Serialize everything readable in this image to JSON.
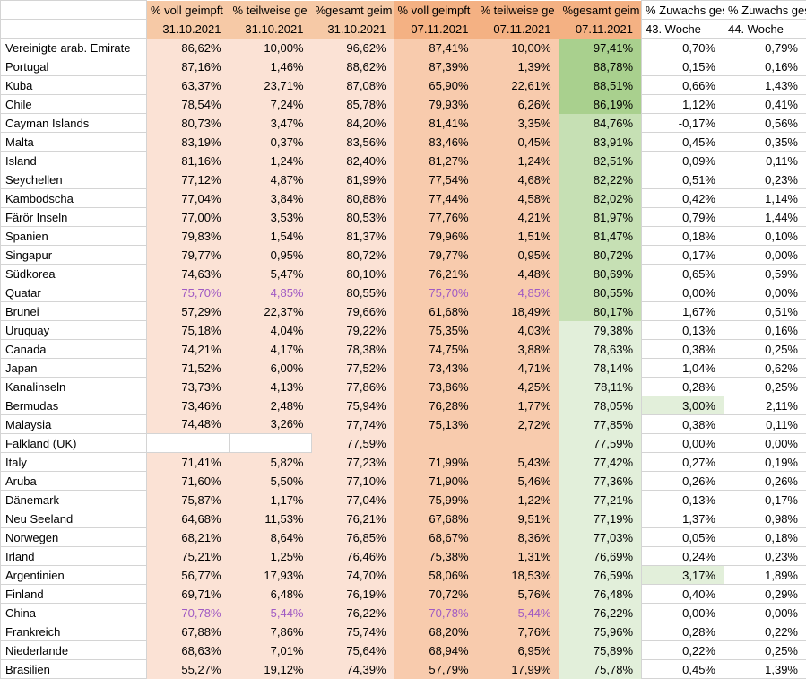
{
  "app": {
    "type": "spreadsheet-vaccination-table"
  },
  "colors": {
    "oct_header": "#f6c9a6",
    "oct_body": "#fbe2d5",
    "nov_header": "#f4b183",
    "nov_body": "#f8cbad",
    "gesamt_dark_green": "#a9d08e",
    "gesamt_mid_green": "#c6e0b4",
    "gesamt_light_green": "#e2efda",
    "highlight_green": "#e2efda",
    "purple_font": "#a05ac3",
    "gridline": "#d4d4d4"
  },
  "table": {
    "columns": [
      {
        "key": "voll-31",
        "label": "% voll geimpft",
        "sub": "31.10.2021",
        "group": "oct"
      },
      {
        "key": "teilweise-31",
        "label": "% teilweise ge",
        "sub": "31.10.2021",
        "group": "oct"
      },
      {
        "key": "gesamt-31",
        "label": "%gesamt geim",
        "sub": "31.10.2021",
        "group": "oct"
      },
      {
        "key": "voll-07",
        "label": "% voll geimpft",
        "sub": "07.11.2021",
        "group": "nov"
      },
      {
        "key": "teilweise-07",
        "label": "% teilweise ge",
        "sub": "07.11.2021",
        "group": "nov"
      },
      {
        "key": "gesamt-07",
        "label": "%gesamt geim",
        "sub": "07.11.2021",
        "group": "nov"
      },
      {
        "key": "zuwachs-43",
        "label": "% Zuwachs ges",
        "sub": "43. Woche",
        "group": "plain"
      },
      {
        "key": "zuwachs-44",
        "label": "% Zuwachs ges",
        "sub": "44. Woche",
        "group": "plain"
      }
    ],
    "rows": [
      {
        "country": "Vereinigte arab. Emirate",
        "values": [
          "86,62%",
          "10,00%",
          "96,62%",
          "87,41%",
          "10,00%",
          "97,41%",
          "0,70%",
          "0,79%"
        ],
        "gesamt_shade": "dark"
      },
      {
        "country": "Portugal",
        "values": [
          "87,16%",
          "1,46%",
          "88,62%",
          "87,39%",
          "1,39%",
          "88,78%",
          "0,15%",
          "0,16%"
        ],
        "gesamt_shade": "dark"
      },
      {
        "country": "Kuba",
        "values": [
          "63,37%",
          "23,71%",
          "87,08%",
          "65,90%",
          "22,61%",
          "88,51%",
          "0,66%",
          "1,43%"
        ],
        "gesamt_shade": "dark"
      },
      {
        "country": "Chile",
        "values": [
          "78,54%",
          "7,24%",
          "85,78%",
          "79,93%",
          "6,26%",
          "86,19%",
          "1,12%",
          "0,41%"
        ],
        "gesamt_shade": "dark"
      },
      {
        "country": "Cayman Islands",
        "values": [
          "80,73%",
          "3,47%",
          "84,20%",
          "81,41%",
          "3,35%",
          "84,76%",
          "-0,17%",
          "0,56%"
        ],
        "gesamt_shade": "mid"
      },
      {
        "country": "Malta",
        "values": [
          "83,19%",
          "0,37%",
          "83,56%",
          "83,46%",
          "0,45%",
          "83,91%",
          "0,45%",
          "0,35%"
        ],
        "gesamt_shade": "mid"
      },
      {
        "country": "Island",
        "values": [
          "81,16%",
          "1,24%",
          "82,40%",
          "81,27%",
          "1,24%",
          "82,51%",
          "0,09%",
          "0,11%"
        ],
        "gesamt_shade": "mid"
      },
      {
        "country": "Seychellen",
        "values": [
          "77,12%",
          "4,87%",
          "81,99%",
          "77,54%",
          "4,68%",
          "82,22%",
          "0,51%",
          "0,23%"
        ],
        "gesamt_shade": "mid"
      },
      {
        "country": "Kambodscha",
        "values": [
          "77,04%",
          "3,84%",
          "80,88%",
          "77,44%",
          "4,58%",
          "82,02%",
          "0,42%",
          "1,14%"
        ],
        "gesamt_shade": "mid"
      },
      {
        "country": "Färör Inseln",
        "values": [
          "77,00%",
          "3,53%",
          "80,53%",
          "77,76%",
          "4,21%",
          "81,97%",
          "0,79%",
          "1,44%"
        ],
        "gesamt_shade": "mid"
      },
      {
        "country": "Spanien",
        "values": [
          "79,83%",
          "1,54%",
          "81,37%",
          "79,96%",
          "1,51%",
          "81,47%",
          "0,18%",
          "0,10%"
        ],
        "gesamt_shade": "mid"
      },
      {
        "country": "Singapur",
        "values": [
          "79,77%",
          "0,95%",
          "80,72%",
          "79,77%",
          "0,95%",
          "80,72%",
          "0,17%",
          "0,00%"
        ],
        "gesamt_shade": "mid"
      },
      {
        "country": "Südkorea",
        "values": [
          "74,63%",
          "5,47%",
          "80,10%",
          "76,21%",
          "4,48%",
          "80,69%",
          "0,65%",
          "0,59%"
        ],
        "gesamt_shade": "mid"
      },
      {
        "country": "Quatar",
        "values": [
          "75,70%",
          "4,85%",
          "80,55%",
          "75,70%",
          "4,85%",
          "80,55%",
          "0,00%",
          "0,00%"
        ],
        "gesamt_shade": "mid",
        "purple": true
      },
      {
        "country": "Brunei",
        "values": [
          "57,29%",
          "22,37%",
          "79,66%",
          "61,68%",
          "18,49%",
          "80,17%",
          "1,67%",
          "0,51%"
        ],
        "gesamt_shade": "mid"
      },
      {
        "country": "Uruquay",
        "values": [
          "75,18%",
          "4,04%",
          "79,22%",
          "75,35%",
          "4,03%",
          "79,38%",
          "0,13%",
          "0,16%"
        ],
        "gesamt_shade": "light"
      },
      {
        "country": "Canada",
        "values": [
          "74,21%",
          "4,17%",
          "78,38%",
          "74,75%",
          "3,88%",
          "78,63%",
          "0,38%",
          "0,25%"
        ],
        "gesamt_shade": "light"
      },
      {
        "country": "Japan",
        "values": [
          "71,52%",
          "6,00%",
          "77,52%",
          "73,43%",
          "4,71%",
          "78,14%",
          "1,04%",
          "0,62%"
        ],
        "gesamt_shade": "light"
      },
      {
        "country": "Kanalinseln",
        "values": [
          "73,73%",
          "4,13%",
          "77,86%",
          "73,86%",
          "4,25%",
          "78,11%",
          "0,28%",
          "0,25%"
        ],
        "gesamt_shade": "light"
      },
      {
        "country": "Bermudas",
        "values": [
          "73,46%",
          "2,48%",
          "75,94%",
          "76,28%",
          "1,77%",
          "78,05%",
          "3,00%",
          "2,11%"
        ],
        "gesamt_shade": "light",
        "zuwachs43_highlight": true
      },
      {
        "country": "Malaysia",
        "values": [
          "74,48%",
          "3,26%",
          "77,74%",
          "75,13%",
          "2,72%",
          "77,85%",
          "0,38%",
          "0,11%"
        ],
        "gesamt_shade": "light"
      },
      {
        "country": "Falkland (UK)",
        "values": [
          "",
          "",
          "77,59%",
          "",
          "",
          "77,59%",
          "0,00%",
          "0,00%"
        ],
        "gesamt_shade": "light",
        "empty_oct_white": true
      },
      {
        "country": "Italy",
        "values": [
          "71,41%",
          "5,82%",
          "77,23%",
          "71,99%",
          "5,43%",
          "77,42%",
          "0,27%",
          "0,19%"
        ],
        "gesamt_shade": "light"
      },
      {
        "country": "Aruba",
        "values": [
          "71,60%",
          "5,50%",
          "77,10%",
          "71,90%",
          "5,46%",
          "77,36%",
          "0,26%",
          "0,26%"
        ],
        "gesamt_shade": "light"
      },
      {
        "country": "Dänemark",
        "values": [
          "75,87%",
          "1,17%",
          "77,04%",
          "75,99%",
          "1,22%",
          "77,21%",
          "0,13%",
          "0,17%"
        ],
        "gesamt_shade": "light"
      },
      {
        "country": "Neu Seeland",
        "values": [
          "64,68%",
          "11,53%",
          "76,21%",
          "67,68%",
          "9,51%",
          "77,19%",
          "1,37%",
          "0,98%"
        ],
        "gesamt_shade": "light"
      },
      {
        "country": "Norwegen",
        "values": [
          "68,21%",
          "8,64%",
          "76,85%",
          "68,67%",
          "8,36%",
          "77,03%",
          "0,05%",
          "0,18%"
        ],
        "gesamt_shade": "light"
      },
      {
        "country": "Irland",
        "values": [
          "75,21%",
          "1,25%",
          "76,46%",
          "75,38%",
          "1,31%",
          "76,69%",
          "0,24%",
          "0,23%"
        ],
        "gesamt_shade": "light"
      },
      {
        "country": "Argentinien",
        "values": [
          "56,77%",
          "17,93%",
          "74,70%",
          "58,06%",
          "18,53%",
          "76,59%",
          "3,17%",
          "1,89%"
        ],
        "gesamt_shade": "light",
        "zuwachs43_highlight": true
      },
      {
        "country": "Finland",
        "values": [
          "69,71%",
          "6,48%",
          "76,19%",
          "70,72%",
          "5,76%",
          "76,48%",
          "0,40%",
          "0,29%"
        ],
        "gesamt_shade": "light"
      },
      {
        "country": "China",
        "values": [
          "70,78%",
          "5,44%",
          "76,22%",
          "70,78%",
          "5,44%",
          "76,22%",
          "0,00%",
          "0,00%"
        ],
        "gesamt_shade": "light",
        "purple": true
      },
      {
        "country": "Frankreich",
        "values": [
          "67,88%",
          "7,86%",
          "75,74%",
          "68,20%",
          "7,76%",
          "75,96%",
          "0,28%",
          "0,22%"
        ],
        "gesamt_shade": "light"
      },
      {
        "country": "Niederlande",
        "values": [
          "68,63%",
          "7,01%",
          "75,64%",
          "68,94%",
          "6,95%",
          "75,89%",
          "0,22%",
          "0,25%"
        ],
        "gesamt_shade": "light"
      },
      {
        "country": "Brasilien",
        "values": [
          "55,27%",
          "19,12%",
          "74,39%",
          "57,79%",
          "17,99%",
          "75,78%",
          "0,45%",
          "1,39%"
        ],
        "gesamt_shade": "light"
      }
    ]
  }
}
